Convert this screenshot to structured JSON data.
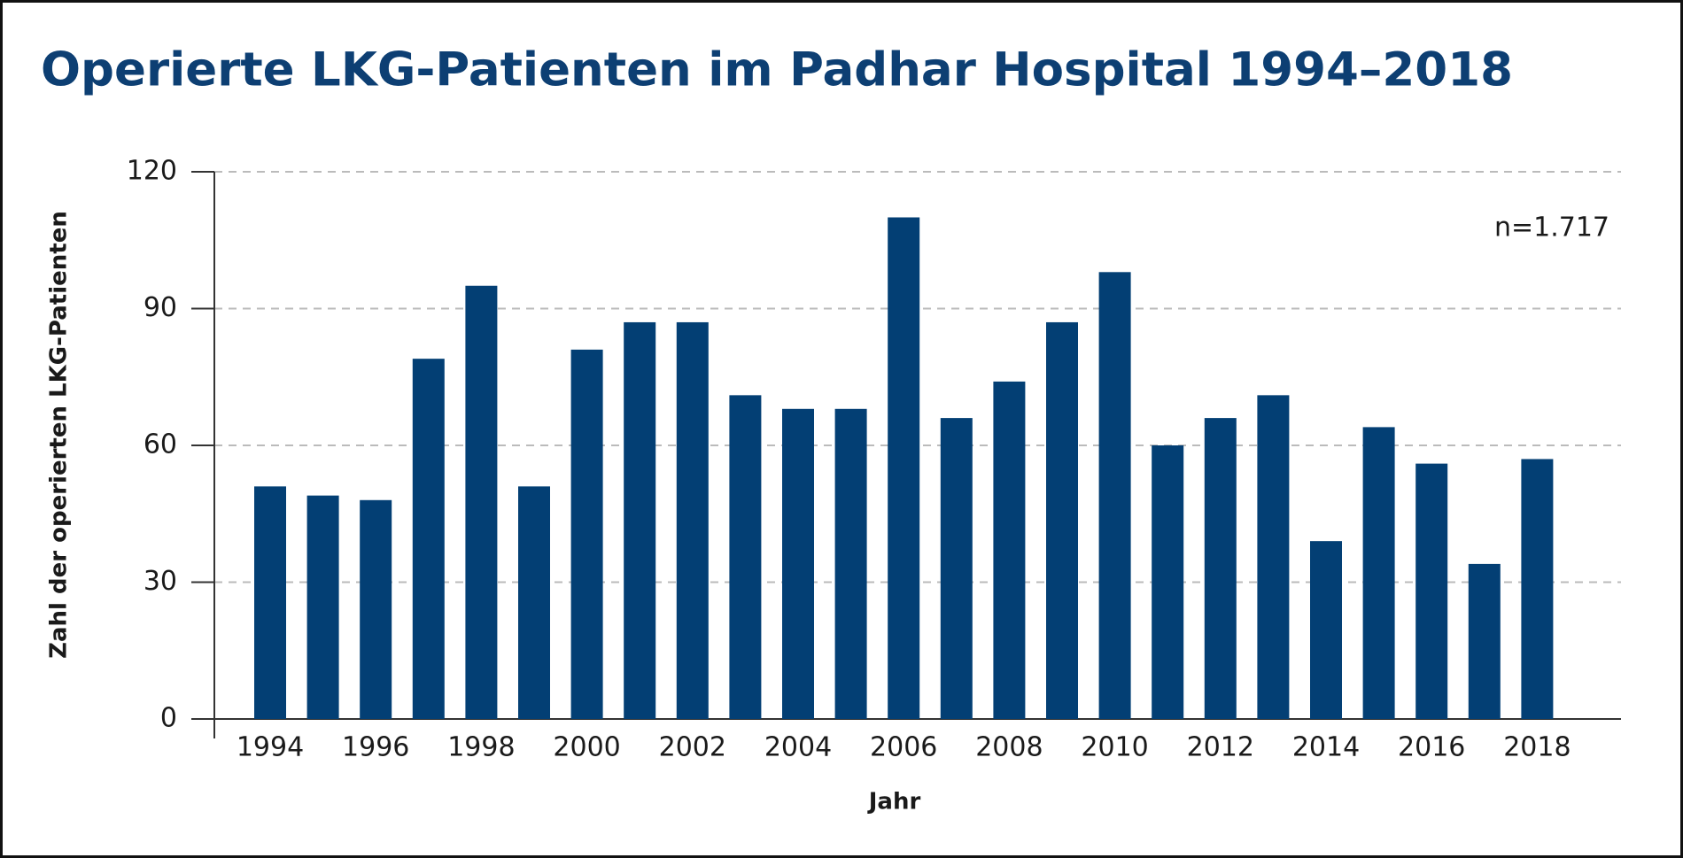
{
  "chart_data": {
    "type": "bar",
    "title": "Operierte LKG-Patienten im Padhar Hospital 1994–2018",
    "annotation": "n=1.717",
    "x_label": "Jahr",
    "y_label": "Zahl der operierten LKG-Patienten",
    "categories": [
      "1994",
      null,
      "1996",
      null,
      "1998",
      null,
      "2000",
      null,
      "2002",
      null,
      "2004",
      null,
      "2006",
      null,
      "2008",
      null,
      "2010",
      null,
      "2012",
      null,
      "2014",
      null,
      "2016",
      null,
      "2018"
    ],
    "values": [
      51,
      49,
      48,
      79,
      95,
      51,
      81,
      87,
      87,
      71,
      68,
      68,
      110,
      66,
      74,
      87,
      98,
      60,
      66,
      71,
      39,
      64,
      56,
      34,
      57
    ],
    "color": "#033f74",
    "ylim": [
      0,
      120
    ],
    "yticks": [
      0,
      30,
      60,
      90,
      120
    ],
    "grid": true
  }
}
